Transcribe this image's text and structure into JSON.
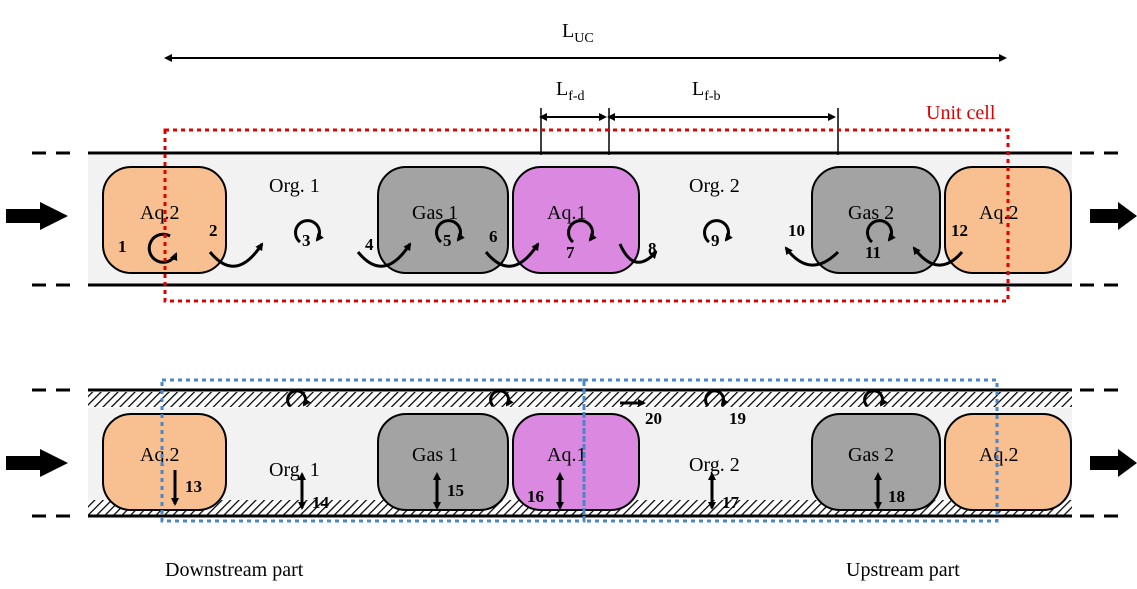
{
  "dimensions": {
    "l_uc": {
      "base": "L",
      "sub": "UC"
    },
    "l_fd": {
      "base": "L",
      "sub": "f-d"
    },
    "l_fb": {
      "base": "L",
      "sub": "f-b"
    }
  },
  "unit_cell_label": "Unit cell",
  "segments": {
    "aq2": "Aq.2",
    "org1": "Org. 1",
    "gas1": "Gas 1",
    "aq1": "Aq.1",
    "org2": "Org. 2",
    "gas2": "Gas 2"
  },
  "top_numbers": [
    "1",
    "2",
    "3",
    "4",
    "5",
    "6",
    "7",
    "8",
    "9",
    "10",
    "11",
    "12"
  ],
  "bottom_numbers": [
    "13",
    "14",
    "15",
    "16",
    "17",
    "18",
    "19",
    "20"
  ],
  "part_labels": {
    "downstream": "Downstream part",
    "upstream": "Upstream part"
  },
  "colors": {
    "aq2": "#f8c090",
    "gas": "#a3a3a3",
    "aq1": "#da88e0",
    "channel": "#f2f2f2",
    "unit_cell_border": "#e00000",
    "part_border": "#4a86c8"
  }
}
